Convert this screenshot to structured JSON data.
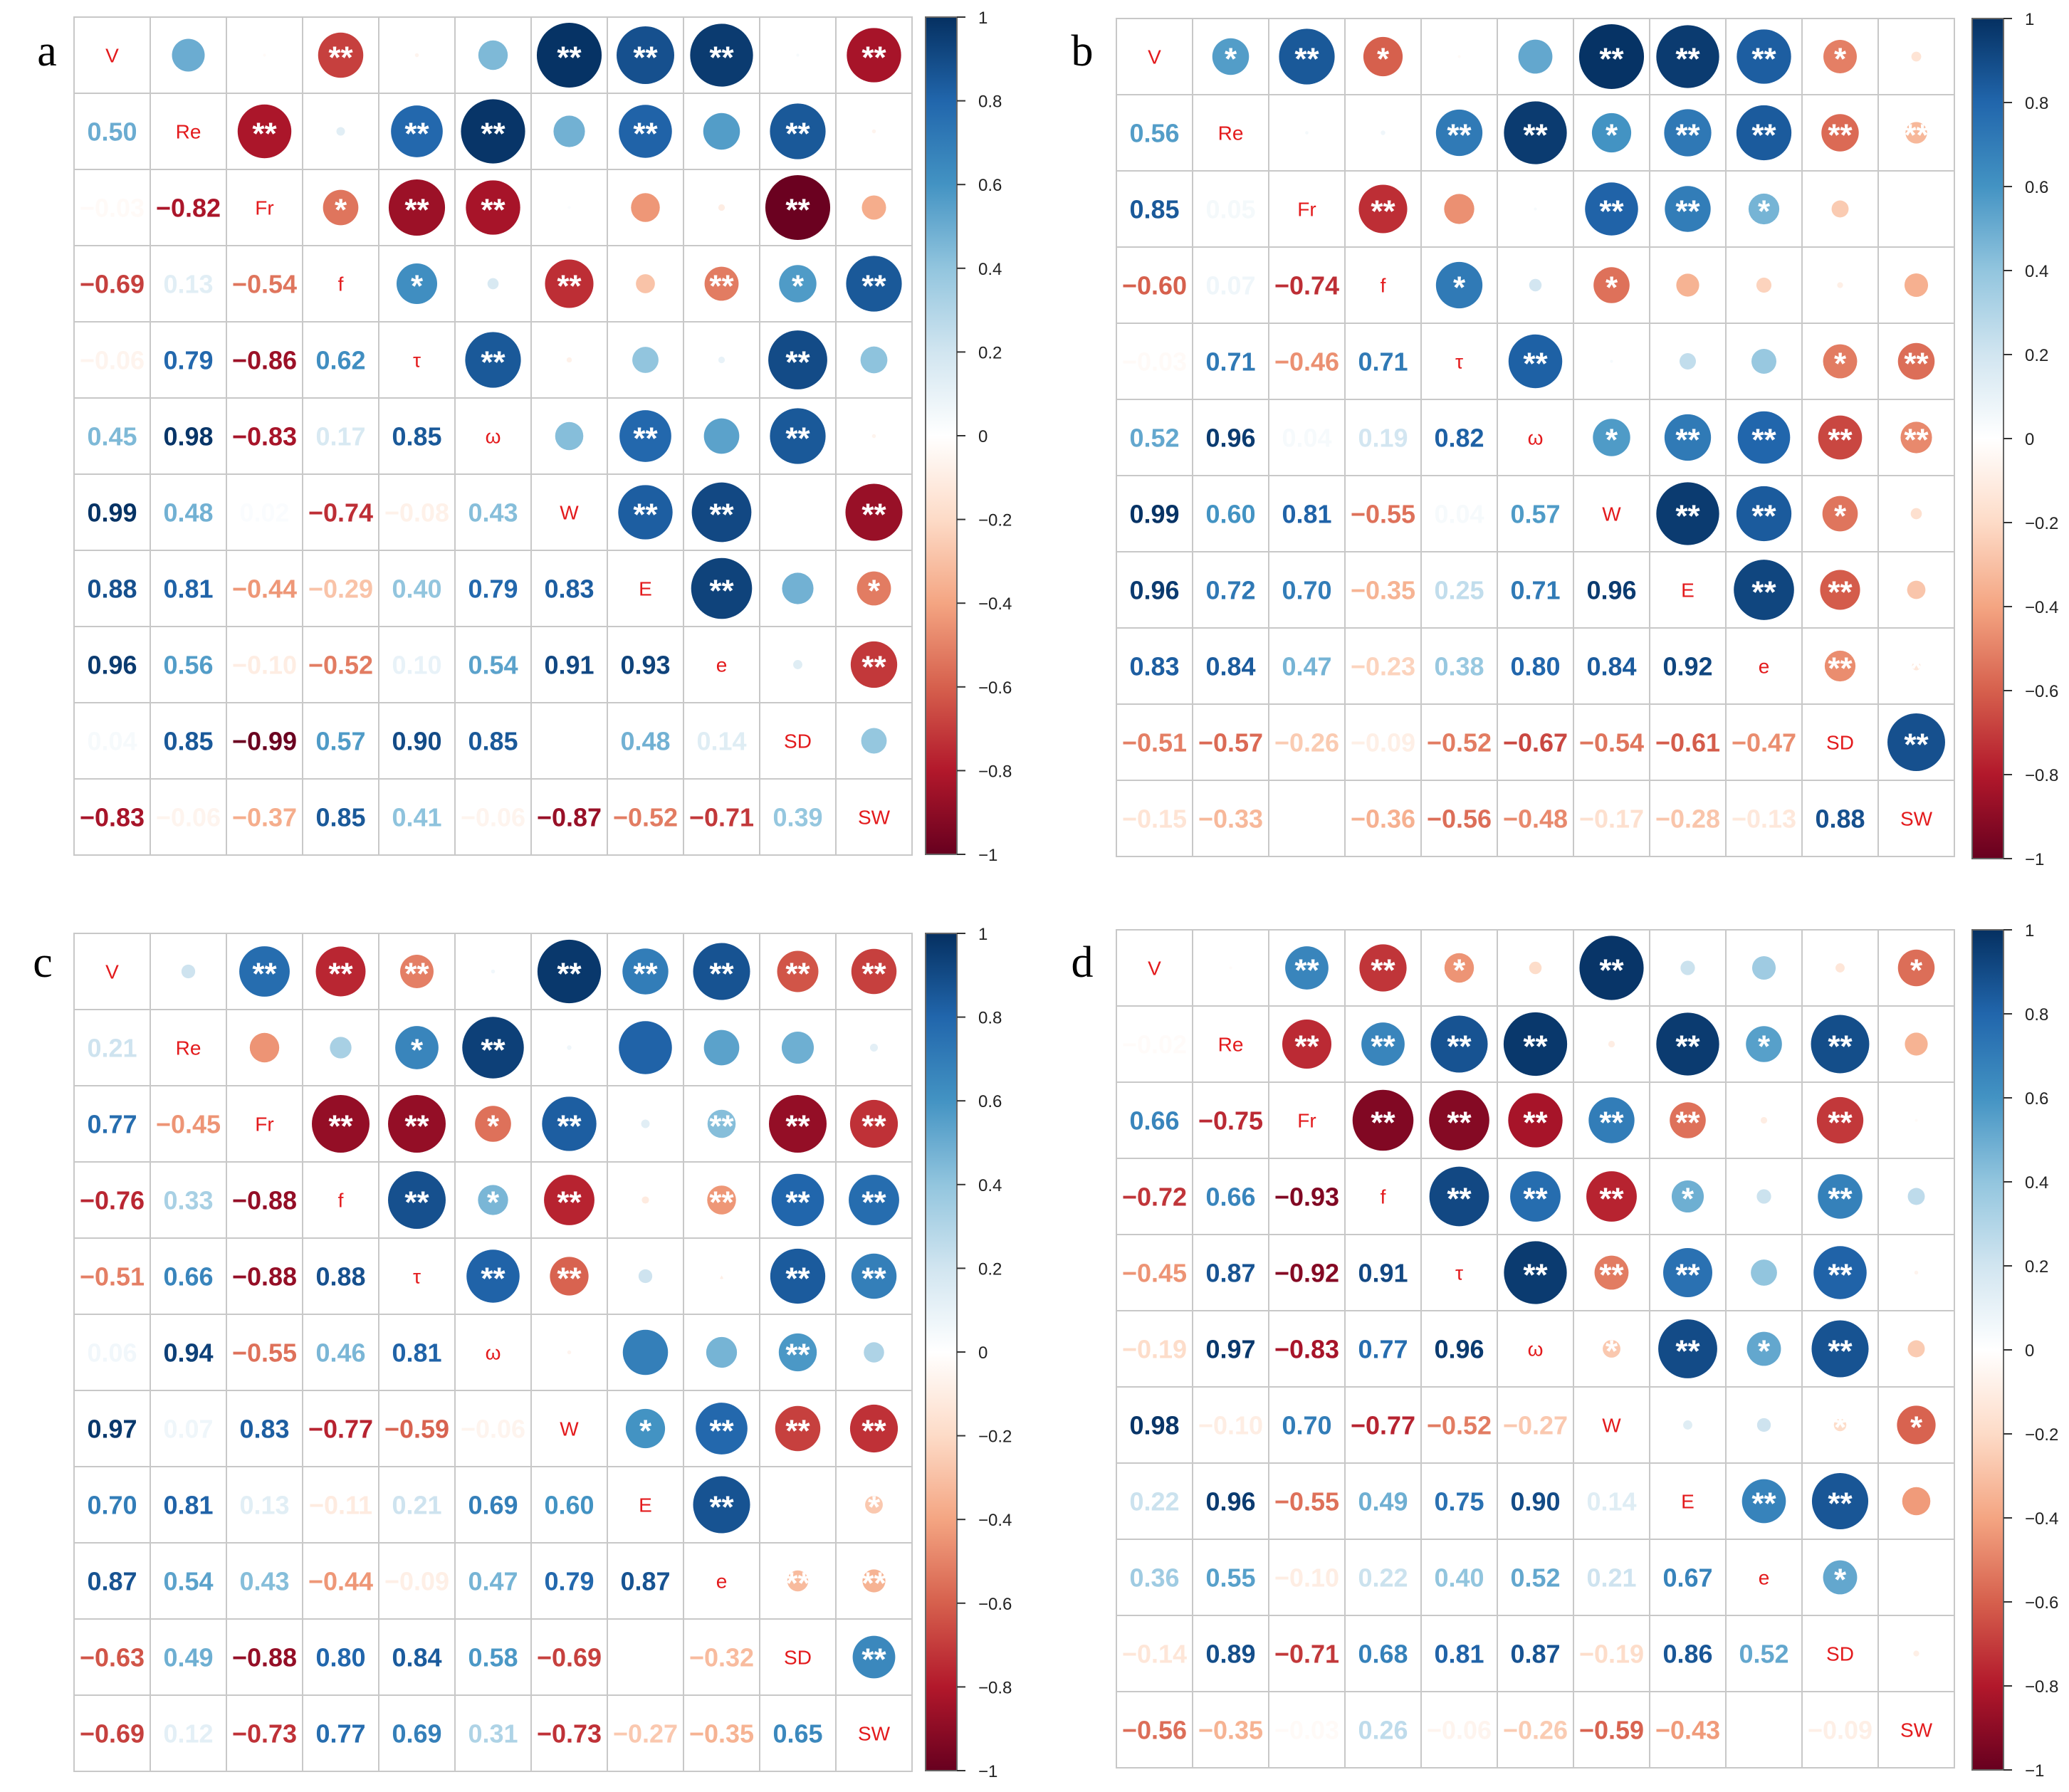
{
  "chart_data": [
    {
      "type": "heatmap",
      "panel": "a",
      "variables": [
        "V",
        "Re",
        "Fr",
        "f",
        "τ",
        "ω",
        "W",
        "E",
        "e",
        "SD",
        "SW"
      ],
      "matrix": [
        [
          null,
          0.5,
          -0.03,
          -0.69,
          -0.06,
          0.45,
          0.99,
          0.88,
          0.96,
          0.04,
          -0.83
        ],
        [
          0.5,
          null,
          -0.82,
          0.13,
          0.79,
          0.98,
          0.48,
          0.81,
          0.56,
          0.85,
          -0.06
        ],
        [
          -0.03,
          -0.82,
          null,
          -0.54,
          -0.86,
          -0.83,
          0.02,
          -0.44,
          -0.1,
          -0.99,
          -0.37
        ],
        [
          -0.69,
          0.13,
          -0.54,
          null,
          0.62,
          0.17,
          -0.74,
          -0.29,
          -0.52,
          0.57,
          0.85
        ],
        [
          -0.06,
          0.79,
          -0.86,
          0.62,
          null,
          0.85,
          -0.08,
          0.4,
          0.1,
          0.9,
          0.41
        ],
        [
          0.45,
          0.98,
          -0.83,
          0.17,
          0.85,
          null,
          0.43,
          0.79,
          0.54,
          0.85,
          -0.06
        ],
        [
          0.99,
          0.48,
          0.02,
          -0.74,
          -0.08,
          0.43,
          null,
          0.83,
          0.91,
          null,
          -0.87
        ],
        [
          0.88,
          0.81,
          -0.44,
          -0.29,
          0.4,
          0.79,
          0.83,
          null,
          0.93,
          0.48,
          -0.52
        ],
        [
          0.96,
          0.56,
          -0.1,
          -0.52,
          0.1,
          0.54,
          0.91,
          0.93,
          null,
          0.14,
          -0.71
        ],
        [
          0.04,
          0.85,
          -0.99,
          0.57,
          0.9,
          0.85,
          null,
          0.48,
          0.14,
          null,
          0.39
        ],
        [
          -0.83,
          -0.06,
          -0.37,
          0.85,
          0.41,
          -0.06,
          -0.87,
          -0.52,
          -0.71,
          0.39,
          null
        ]
      ],
      "significance": [
        [
          "",
          "",
          "",
          "**",
          "",
          "",
          "**",
          "**",
          "**",
          "",
          "**"
        ],
        [
          "",
          "",
          "**",
          "",
          "**",
          "**",
          "",
          "**",
          "",
          "**",
          ""
        ],
        [
          "",
          "",
          "",
          "*",
          "**",
          "**",
          "",
          "",
          "",
          "**",
          ""
        ],
        [
          "",
          "",
          "",
          "",
          "*",
          "",
          "**",
          "",
          "**",
          "*",
          "**"
        ],
        [
          "",
          "",
          "",
          "",
          "",
          "**",
          "",
          "",
          "",
          "**",
          ""
        ],
        [
          "",
          "",
          "",
          "",
          "",
          "",
          "",
          "**",
          "",
          "**",
          ""
        ],
        [
          "",
          "",
          "",
          "",
          "",
          "",
          "",
          "**",
          "**",
          "",
          "**"
        ],
        [
          "",
          "",
          "",
          "",
          "",
          "",
          "",
          "",
          "**",
          "",
          "*"
        ],
        [
          "",
          "",
          "",
          "",
          "",
          "",
          "",
          "",
          "",
          "",
          "**"
        ],
        [
          "",
          "",
          "",
          "",
          "",
          "",
          "",
          "",
          "",
          "",
          ""
        ],
        [
          "",
          "",
          "",
          "",
          "",
          "",
          "",
          "",
          "",
          "",
          ""
        ]
      ]
    },
    {
      "type": "heatmap",
      "panel": "b",
      "variables": [
        "V",
        "Re",
        "Fr",
        "f",
        "τ",
        "ω",
        "W",
        "E",
        "e",
        "SD",
        "SW"
      ],
      "matrix": [
        [
          null,
          0.56,
          0.85,
          -0.6,
          -0.03,
          0.52,
          0.99,
          0.96,
          0.83,
          -0.51,
          -0.15
        ],
        [
          0.56,
          null,
          0.05,
          0.07,
          0.71,
          0.96,
          0.6,
          0.72,
          0.84,
          -0.57,
          -0.33
        ],
        [
          0.85,
          0.05,
          null,
          -0.74,
          -0.46,
          0.04,
          0.81,
          0.7,
          0.47,
          -0.26,
          null
        ],
        [
          -0.6,
          0.07,
          -0.74,
          null,
          0.71,
          0.19,
          -0.55,
          -0.35,
          -0.23,
          -0.09,
          -0.36
        ],
        [
          -0.03,
          0.71,
          -0.46,
          0.71,
          null,
          0.82,
          0.04,
          0.25,
          0.38,
          -0.52,
          -0.56
        ],
        [
          0.52,
          0.96,
          0.04,
          0.19,
          0.82,
          null,
          0.57,
          0.71,
          0.8,
          -0.67,
          -0.48
        ],
        [
          0.99,
          0.6,
          0.81,
          -0.55,
          0.04,
          0.57,
          null,
          0.96,
          0.84,
          -0.54,
          -0.17
        ],
        [
          0.96,
          0.72,
          0.7,
          -0.35,
          0.25,
          0.71,
          0.96,
          null,
          0.92,
          -0.61,
          -0.28
        ],
        [
          0.83,
          0.84,
          0.47,
          -0.23,
          0.38,
          0.8,
          0.84,
          0.92,
          null,
          -0.47,
          -0.13
        ],
        [
          -0.51,
          -0.57,
          -0.26,
          -0.09,
          -0.52,
          -0.67,
          -0.54,
          -0.61,
          -0.47,
          null,
          0.88
        ],
        [
          -0.15,
          -0.33,
          null,
          -0.36,
          -0.56,
          -0.48,
          -0.17,
          -0.28,
          -0.13,
          0.88,
          null
        ]
      ],
      "significance": [
        [
          "",
          "*",
          "**",
          "*",
          "",
          "",
          "**",
          "**",
          "**",
          "*",
          ""
        ],
        [
          "",
          "",
          "",
          "",
          "**",
          "**",
          "*",
          "**",
          "**",
          "**",
          "**"
        ],
        [
          "",
          "",
          "",
          "**",
          "",
          "",
          "**",
          "**",
          "*",
          "",
          ""
        ],
        [
          "",
          "",
          "",
          "",
          "*",
          "",
          "*",
          "",
          "",
          "",
          ""
        ],
        [
          "",
          "",
          "",
          "",
          "",
          "**",
          "",
          "",
          "",
          "*",
          "**"
        ],
        [
          "",
          "",
          "",
          "",
          "",
          "",
          "*",
          "**",
          "**",
          "**",
          "**"
        ],
        [
          "",
          "",
          "",
          "",
          "",
          "",
          "",
          "**",
          "**",
          "*",
          ""
        ],
        [
          "",
          "",
          "",
          "",
          "",
          "",
          "",
          "",
          "**",
          "**",
          ""
        ],
        [
          "",
          "",
          "",
          "",
          "",
          "",
          "",
          "",
          "",
          "**",
          "*"
        ],
        [
          "",
          "",
          "",
          "",
          "",
          "",
          "",
          "",
          "",
          "",
          "**"
        ],
        [
          "",
          "",
          "",
          "",
          "",
          "",
          "",
          "",
          "",
          "",
          ""
        ]
      ]
    },
    {
      "type": "heatmap",
      "panel": "c",
      "variables": [
        "V",
        "Re",
        "Fr",
        "f",
        "τ",
        "ω",
        "W",
        "E",
        "e",
        "SD",
        "SW"
      ],
      "matrix": [
        [
          null,
          0.21,
          0.77,
          -0.76,
          -0.51,
          0.06,
          0.97,
          0.7,
          0.87,
          -0.63,
          -0.69
        ],
        [
          0.21,
          null,
          -0.45,
          0.33,
          0.66,
          0.94,
          0.07,
          0.81,
          0.54,
          0.49,
          0.12
        ],
        [
          0.77,
          -0.45,
          null,
          -0.88,
          -0.88,
          -0.55,
          0.83,
          0.13,
          0.43,
          -0.88,
          -0.73
        ],
        [
          -0.76,
          0.33,
          -0.88,
          null,
          0.88,
          0.46,
          -0.77,
          -0.11,
          -0.44,
          0.8,
          0.77
        ],
        [
          -0.51,
          0.66,
          -0.88,
          0.88,
          null,
          0.81,
          -0.59,
          0.21,
          -0.09,
          0.84,
          0.69
        ],
        [
          0.06,
          0.94,
          -0.55,
          0.46,
          0.81,
          null,
          -0.06,
          0.69,
          0.47,
          0.58,
          0.31
        ],
        [
          0.97,
          0.07,
          0.83,
          -0.77,
          -0.59,
          -0.06,
          null,
          0.6,
          0.79,
          -0.69,
          -0.73
        ],
        [
          0.7,
          0.81,
          0.13,
          -0.11,
          0.21,
          0.69,
          0.6,
          null,
          0.87,
          null,
          -0.27
        ],
        [
          0.87,
          0.54,
          0.43,
          -0.44,
          -0.09,
          0.47,
          0.79,
          0.87,
          null,
          -0.32,
          -0.35
        ],
        [
          -0.63,
          0.49,
          -0.88,
          0.8,
          0.84,
          0.58,
          -0.69,
          null,
          -0.32,
          null,
          0.65
        ],
        [
          -0.69,
          0.12,
          -0.73,
          0.77,
          0.69,
          0.31,
          -0.73,
          -0.27,
          -0.35,
          0.65,
          null
        ]
      ],
      "significance": [
        [
          "",
          "",
          "**",
          "**",
          "**",
          "",
          "**",
          "**",
          "**",
          "**",
          "**"
        ],
        [
          "",
          "",
          "",
          "",
          "*",
          "**",
          "",
          "",
          "",
          "",
          ""
        ],
        [
          "",
          "",
          "",
          "**",
          "**",
          "*",
          "**",
          "",
          "**",
          "**",
          "**"
        ],
        [
          "",
          "",
          "",
          "",
          "**",
          "*",
          "**",
          "",
          "**",
          "**",
          "**"
        ],
        [
          "",
          "",
          "",
          "",
          "",
          "**",
          "**",
          "",
          "*",
          "**",
          "**"
        ],
        [
          "",
          "",
          "",
          "",
          "",
          "",
          "",
          "",
          "",
          "**",
          ""
        ],
        [
          "",
          "",
          "",
          "",
          "",
          "",
          "",
          "*",
          "**",
          "**",
          "**"
        ],
        [
          "",
          "",
          "",
          "",
          "",
          "",
          "",
          "",
          "**",
          "",
          "*"
        ],
        [
          "",
          "",
          "",
          "",
          "",
          "",
          "",
          "",
          "",
          "**",
          "**"
        ],
        [
          "",
          "",
          "",
          "",
          "",
          "",
          "",
          "",
          "",
          "",
          "**"
        ],
        [
          "",
          "",
          "",
          "",
          "",
          "",
          "",
          "",
          "",
          "",
          ""
        ]
      ]
    },
    {
      "type": "heatmap",
      "panel": "d",
      "variables": [
        "V",
        "Re",
        "Fr",
        "f",
        "τ",
        "ω",
        "W",
        "E",
        "e",
        "SD",
        "SW"
      ],
      "matrix": [
        [
          null,
          -0.02,
          0.66,
          -0.72,
          -0.45,
          -0.19,
          0.98,
          0.22,
          0.36,
          -0.14,
          -0.56
        ],
        [
          -0.02,
          null,
          -0.75,
          0.66,
          0.87,
          0.97,
          -0.1,
          0.96,
          0.55,
          0.89,
          -0.35
        ],
        [
          0.66,
          -0.75,
          null,
          -0.93,
          -0.92,
          -0.83,
          0.7,
          -0.55,
          -0.1,
          -0.71,
          -0.03
        ],
        [
          -0.72,
          0.66,
          -0.93,
          null,
          0.91,
          0.77,
          -0.77,
          0.49,
          0.22,
          0.68,
          0.26
        ],
        [
          -0.45,
          0.87,
          -0.92,
          0.91,
          null,
          0.96,
          -0.52,
          0.75,
          0.4,
          0.81,
          -0.06
        ],
        [
          -0.19,
          0.97,
          -0.83,
          0.77,
          0.96,
          null,
          -0.27,
          0.9,
          0.52,
          0.87,
          -0.26
        ],
        [
          0.98,
          -0.1,
          0.7,
          -0.77,
          -0.52,
          -0.27,
          null,
          0.14,
          0.21,
          -0.19,
          -0.59
        ],
        [
          0.22,
          0.96,
          -0.55,
          0.49,
          0.75,
          0.9,
          0.14,
          null,
          0.67,
          0.86,
          -0.43
        ],
        [
          0.36,
          0.55,
          -0.1,
          0.22,
          0.4,
          0.52,
          0.21,
          0.67,
          null,
          0.52,
          null
        ],
        [
          -0.14,
          0.89,
          -0.71,
          0.68,
          0.81,
          0.87,
          -0.19,
          0.86,
          0.52,
          null,
          -0.09
        ],
        [
          -0.56,
          -0.35,
          -0.03,
          0.26,
          -0.06,
          -0.26,
          -0.59,
          -0.43,
          null,
          -0.09,
          null
        ]
      ],
      "significance": [
        [
          "",
          "",
          "**",
          "**",
          "*",
          "",
          "**",
          "",
          "",
          "",
          "*"
        ],
        [
          "",
          "",
          "**",
          "**",
          "**",
          "**",
          "",
          "**",
          "*",
          "**",
          ""
        ],
        [
          "",
          "",
          "",
          "**",
          "**",
          "**",
          "**",
          "**",
          "",
          "**",
          ""
        ],
        [
          "",
          "",
          "",
          "",
          "**",
          "**",
          "**",
          "*",
          "",
          "**",
          ""
        ],
        [
          "",
          "",
          "",
          "",
          "",
          "**",
          "**",
          "**",
          "",
          "**",
          ""
        ],
        [
          "",
          "",
          "",
          "",
          "",
          "",
          "*",
          "**",
          "*",
          "**",
          ""
        ],
        [
          "",
          "",
          "",
          "",
          "",
          "",
          "",
          "",
          "",
          "*",
          "*"
        ],
        [
          "",
          "",
          "",
          "",
          "",
          "",
          "",
          "",
          "**",
          "**",
          ""
        ],
        [
          "",
          "",
          "",
          "",
          "",
          "",
          "",
          "",
          "",
          "*",
          ""
        ],
        [
          "",
          "",
          "",
          "",
          "",
          "",
          "",
          "",
          "",
          "",
          ""
        ],
        [
          "",
          "",
          "",
          "",
          "",
          "",
          "",
          "",
          "",
          "",
          ""
        ]
      ]
    }
  ],
  "colorbar": {
    "range": [
      -1,
      1
    ],
    "ticks": [
      1,
      0.8,
      0.6,
      0.4,
      0.2,
      0,
      -0.2,
      -0.4,
      -0.6,
      -0.8,
      -1
    ],
    "tick_labels": [
      "1",
      "0.8",
      "0.6",
      "0.4",
      "0.2",
      "0",
      "−0.2",
      "−0.4",
      "−0.6",
      "−0.8",
      "−1"
    ]
  },
  "colors": {
    "diverging": [
      "#67001f",
      "#b2182b",
      "#d6604d",
      "#f4a582",
      "#fddbc7",
      "#ffffff",
      "#d1e5f0",
      "#92c5de",
      "#4393c3",
      "#2166ac",
      "#053061"
    ],
    "diagonal_label": "#e31a1c",
    "grid": "#c8c8c8",
    "star": "#ffffff"
  }
}
